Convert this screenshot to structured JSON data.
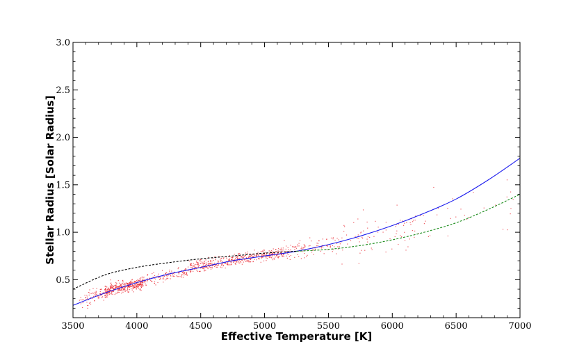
{
  "chart_data": {
    "type": "scatter",
    "title": "",
    "xlabel": "Effective Temperature [K]",
    "ylabel": "Stellar Radius [Solar Radius]",
    "xlim": [
      3500,
      7000
    ],
    "ylim": [
      0.1,
      3.0
    ],
    "xticks": [
      "3500",
      "4000",
      "4500",
      "5000",
      "5500",
      "6000",
      "6500",
      "7000"
    ],
    "yticks": [
      "0.5",
      "1.0",
      "1.5",
      "2.0",
      "2.5",
      "3.0"
    ],
    "grid": false,
    "legend": "none",
    "series": [
      {
        "kind": "scatter",
        "color": "#e8202a",
        "clusters": [
          {
            "x_range": [
              3550,
              3800
            ],
            "y_center": [
              0.25,
              0.41
            ],
            "count": 90,
            "spread": 0.04
          },
          {
            "x_range": [
              3750,
              4050
            ],
            "y_center": [
              0.38,
              0.47
            ],
            "count": 360,
            "spread": 0.03
          },
          {
            "x_range": [
              4050,
              4400
            ],
            "y_center": [
              0.48,
              0.58
            ],
            "count": 120,
            "spread": 0.03
          },
          {
            "x_range": [
              4400,
              4800
            ],
            "y_center": [
              0.62,
              0.72
            ],
            "count": 240,
            "spread": 0.03
          },
          {
            "x_range": [
              4800,
              5150
            ],
            "y_center": [
              0.72,
              0.79
            ],
            "count": 220,
            "spread": 0.03
          },
          {
            "x_range": [
              5150,
              5600
            ],
            "y_center": [
              0.8,
              0.88
            ],
            "count": 110,
            "spread": 0.05
          },
          {
            "x_range": [
              5600,
              6200
            ],
            "y_center": [
              0.9,
              1.05
            ],
            "count": 75,
            "spread": 0.1
          },
          {
            "x_range": [
              6200,
              6950
            ],
            "y_center": [
              1.05,
              1.3
            ],
            "count": 30,
            "spread": 0.15
          }
        ]
      },
      {
        "kind": "line",
        "style": "solid",
        "color": "#1a1aee",
        "x": [
          3500,
          3750,
          4000,
          4250,
          4500,
          4750,
          5000,
          5250,
          5500,
          5750,
          6000,
          6250,
          6500,
          6750,
          7000
        ],
        "y": [
          0.23,
          0.36,
          0.47,
          0.56,
          0.63,
          0.7,
          0.75,
          0.8,
          0.87,
          0.96,
          1.07,
          1.2,
          1.35,
          1.55,
          1.78
        ]
      },
      {
        "kind": "line",
        "style": "dashed",
        "color": "#000000",
        "x": [
          3500,
          3750,
          4000,
          4250,
          4500,
          4750,
          5000,
          5250
        ],
        "y": [
          0.4,
          0.55,
          0.63,
          0.68,
          0.72,
          0.75,
          0.78,
          0.8
        ]
      },
      {
        "kind": "line",
        "style": "dashed",
        "color": "#1a8c1a",
        "x": [
          5250,
          5500,
          5750,
          6000,
          6250,
          6500,
          6750,
          7000
        ],
        "y": [
          0.8,
          0.82,
          0.86,
          0.92,
          1.0,
          1.1,
          1.24,
          1.4
        ]
      }
    ]
  }
}
